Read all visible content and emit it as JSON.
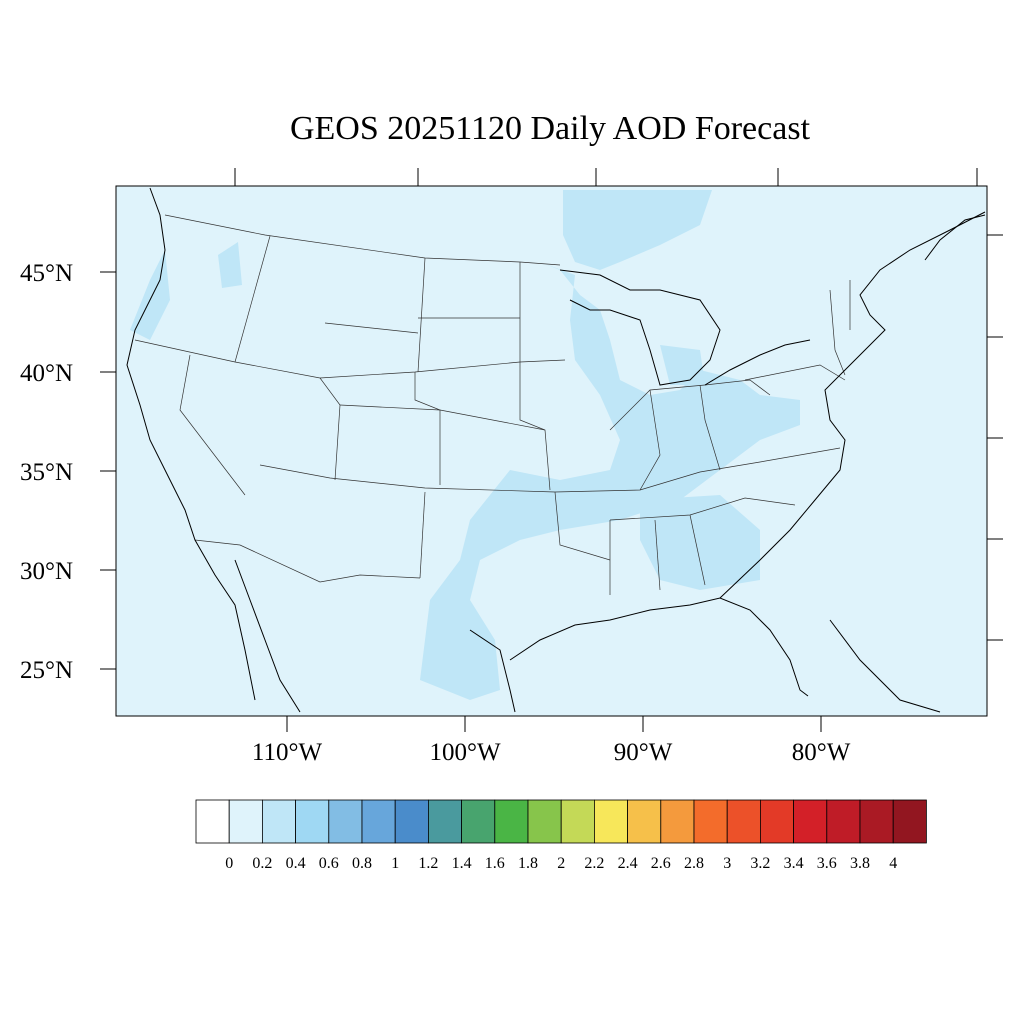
{
  "title": "GEOS 20251120 Daily AOD Forecast",
  "map": {
    "projection": "lambert-conformal",
    "region": "CONUS",
    "background_color": "#dff3fb",
    "coastline_color": "#000000",
    "state_border_color": "#333333"
  },
  "axes": {
    "lat_labels": [
      "45°N",
      "40°N",
      "35°N",
      "30°N",
      "25°N"
    ],
    "lon_labels": [
      "110°W",
      "100°W",
      "90°W",
      "80°W"
    ]
  },
  "colorbar": {
    "labels": [
      "0",
      "0.2",
      "0.4",
      "0.6",
      "0.8",
      "1",
      "1.2",
      "1.4",
      "1.6",
      "1.8",
      "2",
      "2.2",
      "2.4",
      "2.6",
      "2.8",
      "3",
      "3.2",
      "3.4",
      "3.6",
      "3.8",
      "4"
    ],
    "colors": [
      "#ffffff",
      "#dff3fb",
      "#bfe6f7",
      "#9fd8f3",
      "#82bde4",
      "#67a6db",
      "#4a8ccb",
      "#4a9a9e",
      "#48a46e",
      "#4ab545",
      "#87c54b",
      "#c4d957",
      "#f7e75a",
      "#f6c04a",
      "#f49a3d",
      "#f36c2b",
      "#ec5129",
      "#e33a27",
      "#d32028",
      "#bf1c27",
      "#aa1a24",
      "#921620"
    ]
  }
}
